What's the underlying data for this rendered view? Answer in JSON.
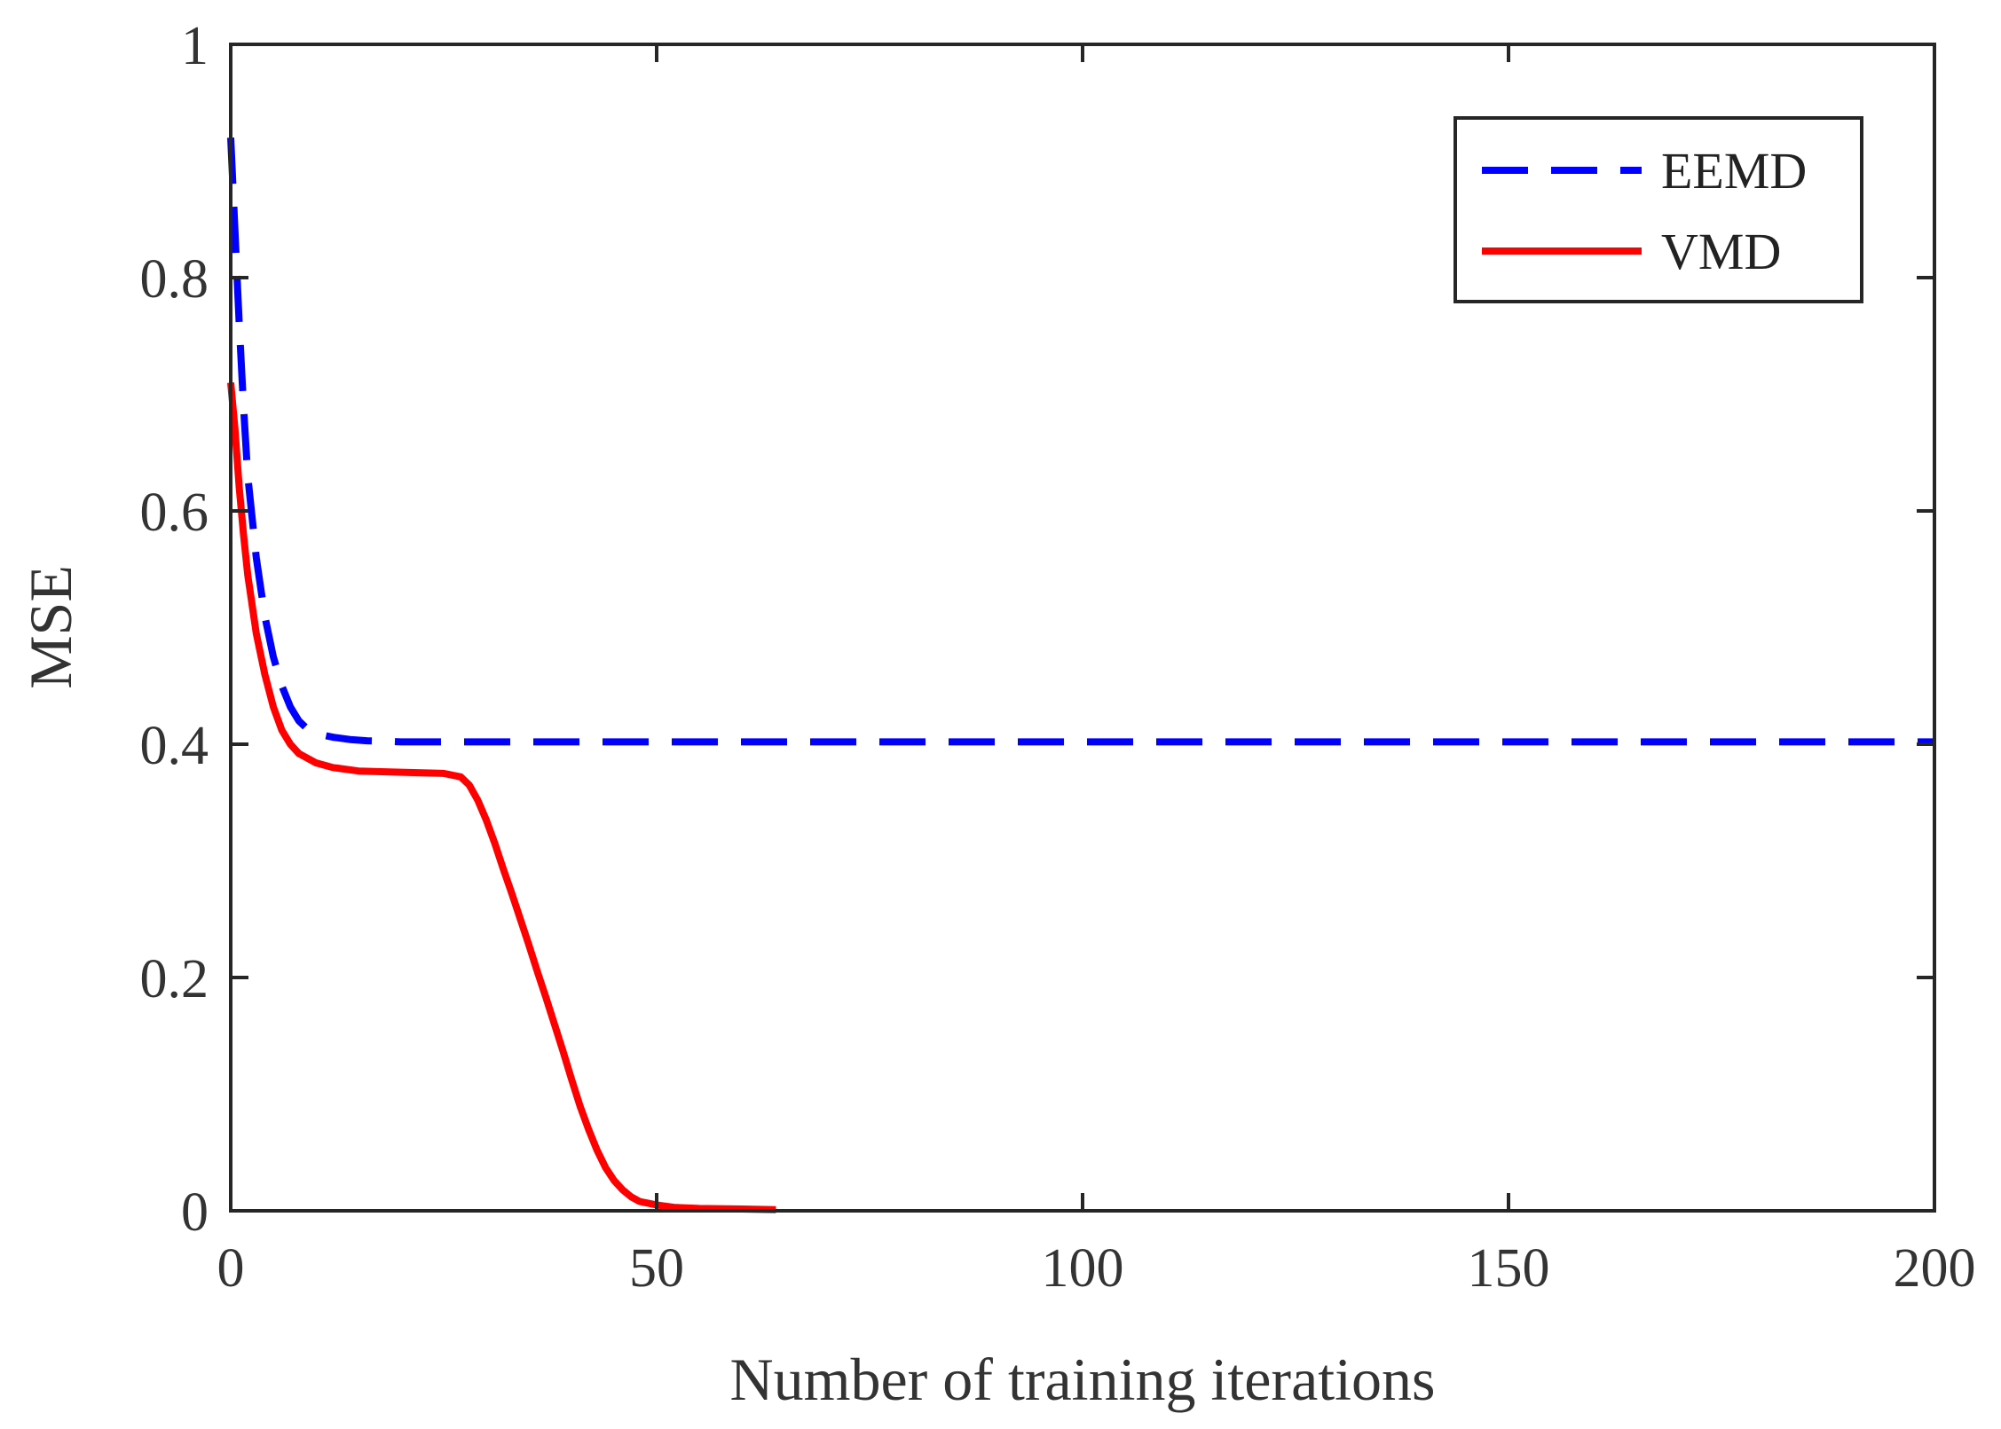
{
  "chart_data": {
    "type": "line",
    "title": "",
    "xlabel": "Number of training iterations",
    "ylabel": "MSE",
    "xlim": [
      0,
      200
    ],
    "ylim": [
      0,
      1
    ],
    "xticks": [
      0,
      50,
      100,
      150,
      200
    ],
    "xtick_labels": [
      "0",
      "50",
      "100",
      "150",
      "200"
    ],
    "yticks": [
      0,
      0.2,
      0.4,
      0.6,
      0.8,
      1
    ],
    "ytick_labels": [
      "0",
      "0.2",
      "0.4",
      "0.6",
      "0.8",
      "1"
    ],
    "grid": false,
    "legend": "top-right",
    "series": [
      {
        "name": "EEMD",
        "color": "#0000ff",
        "style": "dashed",
        "x": [
          0,
          0.5,
          1,
          1.5,
          2,
          3,
          4,
          5,
          6,
          7,
          8,
          9,
          10,
          12,
          14,
          16,
          20,
          30,
          50,
          100,
          150,
          200
        ],
        "y": [
          0.92,
          0.84,
          0.76,
          0.69,
          0.63,
          0.56,
          0.51,
          0.475,
          0.45,
          0.432,
          0.42,
          0.413,
          0.409,
          0.406,
          0.404,
          0.403,
          0.402,
          0.402,
          0.402,
          0.402,
          0.402,
          0.402
        ]
      },
      {
        "name": "VMD",
        "color": "#ff0000",
        "style": "solid",
        "x": [
          0,
          0.5,
          1,
          1.5,
          2,
          3,
          4,
          5,
          6,
          7,
          8,
          10,
          12,
          15,
          20,
          25,
          27,
          28,
          29,
          30,
          31,
          32,
          33,
          34,
          35,
          36,
          37,
          38,
          39,
          40,
          41,
          42,
          43,
          44,
          45,
          46,
          47,
          48,
          50,
          52,
          55,
          60,
          64
        ],
        "y": [
          0.71,
          0.67,
          0.62,
          0.58,
          0.545,
          0.495,
          0.46,
          0.432,
          0.412,
          0.4,
          0.392,
          0.384,
          0.38,
          0.377,
          0.376,
          0.375,
          0.372,
          0.365,
          0.352,
          0.335,
          0.315,
          0.293,
          0.272,
          0.25,
          0.228,
          0.205,
          0.183,
          0.16,
          0.137,
          0.113,
          0.09,
          0.07,
          0.052,
          0.037,
          0.026,
          0.018,
          0.012,
          0.008,
          0.005,
          0.003,
          0.002,
          0.0015,
          0.001
        ]
      }
    ]
  }
}
